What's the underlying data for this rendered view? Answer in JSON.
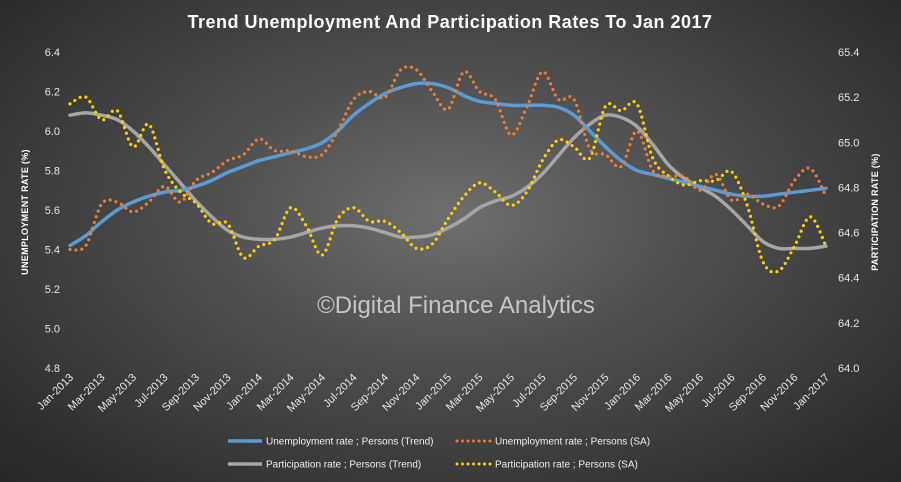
{
  "chart_data": {
    "type": "line",
    "title": "Trend Unemployment And Participation Rates To Jan 2017",
    "ylabel_left": "UNEMPLOYMENT RATE (%)",
    "ylabel_right": "PARTICIPATION RATE (%)",
    "ylim_left": [
      4.8,
      6.4
    ],
    "ylim_right": [
      64.0,
      65.4
    ],
    "yticks_left": [
      "4.8",
      "5.0",
      "5.2",
      "5.4",
      "5.6",
      "5.8",
      "6.0",
      "6.2",
      "6.4"
    ],
    "yticks_right": [
      "64.0",
      "64.2",
      "64.4",
      "64.6",
      "64.8",
      "65.0",
      "65.2",
      "65.4"
    ],
    "x_tick_labels": [
      "Jan-2013",
      "Mar-2013",
      "May-2013",
      "Jul-2013",
      "Sep-2013",
      "Nov-2013",
      "Jan-2014",
      "Mar-2014",
      "May-2014",
      "Jul-2014",
      "Sep-2014",
      "Nov-2014",
      "Jan-2015",
      "Mar-2015",
      "May-2015",
      "Jul-2015",
      "Sep-2015",
      "Nov-2015",
      "Jan-2016",
      "Mar-2016",
      "May-2016",
      "Jul-2016",
      "Sep-2016",
      "Nov-2016",
      "Jan-2017"
    ],
    "months": [
      "Jan-2013",
      "Feb-2013",
      "Mar-2013",
      "Apr-2013",
      "May-2013",
      "Jun-2013",
      "Jul-2013",
      "Aug-2013",
      "Sep-2013",
      "Oct-2013",
      "Nov-2013",
      "Dec-2013",
      "Jan-2014",
      "Feb-2014",
      "Mar-2014",
      "Apr-2014",
      "May-2014",
      "Jun-2014",
      "Jul-2014",
      "Aug-2014",
      "Sep-2014",
      "Oct-2014",
      "Nov-2014",
      "Dec-2014",
      "Jan-2015",
      "Feb-2015",
      "Mar-2015",
      "Apr-2015",
      "May-2015",
      "Jun-2015",
      "Jul-2015",
      "Aug-2015",
      "Sep-2015",
      "Oct-2015",
      "Nov-2015",
      "Dec-2015",
      "Jan-2016",
      "Feb-2016",
      "Mar-2016",
      "Apr-2016",
      "May-2016",
      "Jun-2016",
      "Jul-2016",
      "Aug-2016",
      "Sep-2016",
      "Oct-2016",
      "Nov-2016",
      "Dec-2016",
      "Jan-2017"
    ],
    "grid": false,
    "legend_position": "bottom",
    "watermark": "©Digital Finance Analytics",
    "series": [
      {
        "name": "Unemployment rate ;  Persons (Trend)",
        "axis": "left",
        "style": "solid",
        "color": "#5b9bd5",
        "values": [
          5.42,
          5.47,
          5.54,
          5.6,
          5.64,
          5.67,
          5.69,
          5.7,
          5.72,
          5.75,
          5.79,
          5.82,
          5.85,
          5.87,
          5.89,
          5.91,
          5.94,
          6.0,
          6.08,
          6.14,
          6.19,
          6.22,
          6.24,
          6.24,
          6.22,
          6.18,
          6.15,
          6.14,
          6.13,
          6.13,
          6.13,
          6.12,
          6.08,
          6.0,
          5.92,
          5.85,
          5.8,
          5.78,
          5.76,
          5.74,
          5.72,
          5.7,
          5.68,
          5.67,
          5.67,
          5.68,
          5.69,
          5.7,
          5.71
        ]
      },
      {
        "name": "Unemployment rate ;  Persons (SA)",
        "axis": "left",
        "style": "dotted",
        "color": "#ed7d31",
        "values": [
          5.4,
          5.42,
          5.63,
          5.64,
          5.59,
          5.64,
          5.72,
          5.64,
          5.75,
          5.79,
          5.85,
          5.88,
          5.96,
          5.9,
          5.9,
          5.87,
          5.88,
          6.0,
          6.16,
          6.2,
          6.17,
          6.31,
          6.31,
          6.2,
          6.11,
          6.3,
          6.2,
          6.16,
          5.98,
          6.12,
          6.3,
          6.16,
          6.16,
          5.91,
          5.88,
          5.82,
          6.0,
          5.8,
          5.77,
          5.77,
          5.7,
          5.78,
          5.65,
          5.68,
          5.63,
          5.62,
          5.75,
          5.81,
          5.67
        ]
      },
      {
        "name": "Participation rate ;  Persons (Trend)",
        "axis": "right",
        "style": "solid",
        "color": "#a6a6a6",
        "values": [
          65.12,
          65.13,
          65.12,
          65.1,
          65.05,
          64.98,
          64.9,
          64.82,
          64.74,
          64.67,
          64.61,
          64.58,
          64.57,
          64.57,
          64.58,
          64.6,
          64.62,
          64.63,
          64.63,
          64.62,
          64.6,
          64.58,
          64.58,
          64.59,
          64.62,
          64.66,
          64.71,
          64.74,
          64.76,
          64.8,
          64.86,
          64.94,
          65.02,
          65.08,
          65.12,
          65.11,
          65.07,
          64.99,
          64.9,
          64.84,
          64.8,
          64.76,
          64.7,
          64.63,
          64.56,
          64.53,
          64.53,
          64.53,
          64.54
        ]
      },
      {
        "name": "Participation rate ;  Persons (SA)",
        "axis": "right",
        "style": "dotted",
        "color": "#ffd100",
        "values": [
          65.17,
          65.2,
          65.1,
          65.14,
          64.98,
          65.08,
          64.88,
          64.78,
          64.73,
          64.64,
          64.64,
          64.49,
          64.54,
          64.57,
          64.71,
          64.63,
          64.5,
          64.66,
          64.71,
          64.65,
          64.65,
          64.6,
          64.53,
          64.55,
          64.66,
          64.76,
          64.82,
          64.78,
          64.72,
          64.78,
          64.92,
          65.01,
          64.98,
          64.93,
          65.16,
          65.14,
          65.17,
          64.93,
          64.85,
          64.81,
          64.83,
          64.83,
          64.87,
          64.72,
          64.47,
          64.43,
          64.54,
          64.67,
          64.54
        ]
      }
    ]
  },
  "legend_line_order": [
    [
      0,
      1
    ],
    [
      2,
      3
    ]
  ]
}
